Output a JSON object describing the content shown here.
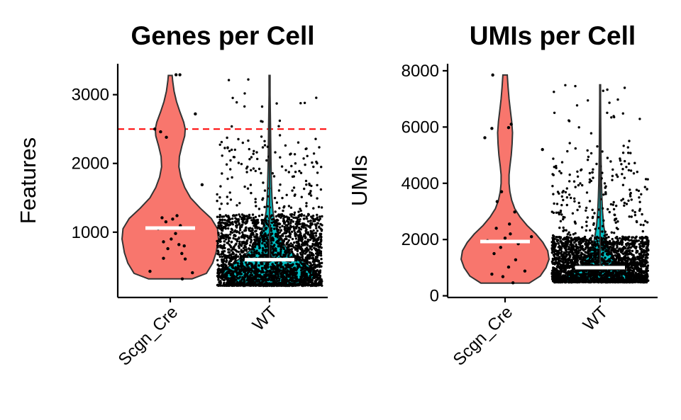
{
  "colors": {
    "Scgn_Cre": "#F8766D",
    "WT": "#00BFC4",
    "threshold": "#FF0000",
    "median": "#FFFFFF",
    "points": "#000000"
  },
  "chart_data": [
    {
      "type": "violin",
      "title": "Genes per Cell",
      "ylabel": "Features",
      "xlabel": "",
      "categories": [
        "Scgn_Cre",
        "WT"
      ],
      "yticks": [
        1000,
        2000,
        3000
      ],
      "ylim": [
        50,
        3450
      ],
      "threshold_line": 2500,
      "grid": false,
      "legend": "none",
      "groups": [
        {
          "name": "Scgn_Cre",
          "median": 1060,
          "min": 320,
          "max": 3280,
          "density": [
            [
              320,
              0.45
            ],
            [
              400,
              0.75
            ],
            [
              550,
              0.88
            ],
            [
              700,
              0.95
            ],
            [
              900,
              1.0
            ],
            [
              1050,
              0.98
            ],
            [
              1200,
              0.85
            ],
            [
              1350,
              0.62
            ],
            [
              1500,
              0.42
            ],
            [
              1650,
              0.3
            ],
            [
              1800,
              0.22
            ],
            [
              1950,
              0.18
            ],
            [
              2100,
              0.19
            ],
            [
              2250,
              0.24
            ],
            [
              2400,
              0.3
            ],
            [
              2500,
              0.31
            ],
            [
              2600,
              0.28
            ],
            [
              2750,
              0.2
            ],
            [
              2900,
              0.13
            ],
            [
              3050,
              0.08
            ],
            [
              3200,
              0.05
            ],
            [
              3280,
              0.04
            ]
          ],
          "points": [
            [
              1210,
              -0.17
            ],
            [
              1240,
              0.14
            ],
            [
              1190,
              0.05
            ],
            [
              1150,
              -0.09
            ],
            [
              1095,
              0.21
            ],
            [
              1050,
              -0.25
            ],
            [
              980,
              0.11
            ],
            [
              900,
              0.02
            ],
            [
              860,
              -0.14
            ],
            [
              820,
              0.18
            ],
            [
              800,
              0.29
            ],
            [
              760,
              -0.05
            ],
            [
              690,
              0.24
            ],
            [
              610,
              0.31
            ],
            [
              430,
              -0.42
            ],
            [
              410,
              0.46
            ],
            [
              320,
              0.25
            ],
            [
              2460,
              -0.2
            ],
            [
              2380,
              -0.08
            ],
            [
              2500,
              -0.32
            ],
            [
              2720,
              0.52
            ],
            [
              1690,
              0.66
            ],
            [
              3290,
              0.2
            ],
            [
              3290,
              0.12
            ],
            [
              620,
              -0.14
            ]
          ]
        },
        {
          "name": "WT",
          "median": 600,
          "min": 220,
          "max": 3280,
          "density": [
            [
              220,
              0.5
            ],
            [
              300,
              0.88
            ],
            [
              380,
              1.0
            ],
            [
              460,
              0.92
            ],
            [
              550,
              0.75
            ],
            [
              650,
              0.55
            ],
            [
              750,
              0.38
            ],
            [
              900,
              0.22
            ],
            [
              1100,
              0.12
            ],
            [
              1300,
              0.07
            ],
            [
              1500,
              0.05
            ],
            [
              1700,
              0.04
            ],
            [
              2000,
              0.03
            ],
            [
              2500,
              0.02
            ],
            [
              3000,
              0.01
            ],
            [
              3280,
              0.01
            ]
          ],
          "points": []
        }
      ]
    },
    {
      "type": "violin",
      "title": "UMIs per Cell",
      "ylabel": "UMIs",
      "xlabel": "",
      "categories": [
        "Scgn_Cre",
        "WT"
      ],
      "yticks": [
        0,
        2000,
        4000,
        6000,
        8000
      ],
      "ylim": [
        -60,
        8250
      ],
      "grid": false,
      "legend": "none",
      "groups": [
        {
          "name": "Scgn_Cre",
          "median": 1930,
          "min": 450,
          "max": 7850,
          "density": [
            [
              450,
              0.55
            ],
            [
              700,
              0.8
            ],
            [
              1000,
              0.93
            ],
            [
              1300,
              1.0
            ],
            [
              1600,
              0.97
            ],
            [
              1900,
              0.86
            ],
            [
              2200,
              0.7
            ],
            [
              2500,
              0.5
            ],
            [
              2800,
              0.34
            ],
            [
              3100,
              0.22
            ],
            [
              3400,
              0.15
            ],
            [
              3700,
              0.11
            ],
            [
              4000,
              0.09
            ],
            [
              4300,
              0.09
            ],
            [
              4600,
              0.11
            ],
            [
              5000,
              0.14
            ],
            [
              5400,
              0.16
            ],
            [
              5800,
              0.17
            ],
            [
              6200,
              0.15
            ],
            [
              6600,
              0.12
            ],
            [
              7000,
              0.09
            ],
            [
              7400,
              0.07
            ],
            [
              7850,
              0.05
            ]
          ],
          "points": [
            [
              7850,
              -0.28
            ],
            [
              6100,
              0.14
            ],
            [
              5980,
              0.08
            ],
            [
              5950,
              -0.3
            ],
            [
              5620,
              -0.46
            ],
            [
              5200,
              0.85
            ],
            [
              3700,
              -0.08
            ],
            [
              3350,
              -0.18
            ],
            [
              2980,
              0.22
            ],
            [
              2550,
              0.1
            ],
            [
              2400,
              -0.2
            ],
            [
              2200,
              0.12
            ],
            [
              2050,
              0.0
            ],
            [
              1960,
              -0.4
            ],
            [
              1850,
              0.3
            ],
            [
              1720,
              -0.1
            ],
            [
              1500,
              -0.25
            ],
            [
              1280,
              0.24
            ],
            [
              1020,
              0.08
            ],
            [
              880,
              0.45
            ],
            [
              770,
              -0.3
            ],
            [
              680,
              -0.05
            ],
            [
              460,
              0.18
            ],
            [
              2100,
              0.6
            ]
          ]
        },
        {
          "name": "WT",
          "median": 1000,
          "min": 480,
          "max": 7500,
          "density": [
            [
              480,
              0.95
            ],
            [
              620,
              1.0
            ],
            [
              800,
              0.72
            ],
            [
              1000,
              0.5
            ],
            [
              1300,
              0.33
            ],
            [
              1600,
              0.22
            ],
            [
              2000,
              0.13
            ],
            [
              2500,
              0.08
            ],
            [
              3000,
              0.055
            ],
            [
              3500,
              0.04
            ],
            [
              4000,
              0.03
            ],
            [
              5000,
              0.02
            ],
            [
              6000,
              0.015
            ],
            [
              7000,
              0.01
            ],
            [
              7500,
              0.01
            ]
          ],
          "points": []
        }
      ]
    }
  ]
}
